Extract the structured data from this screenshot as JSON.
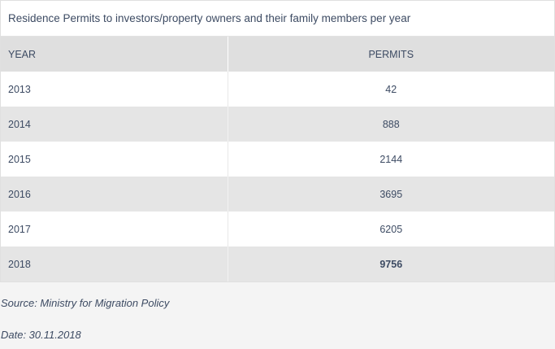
{
  "caption": "Residence Permits to investors/property owners and their family members per year",
  "chart_data": {
    "type": "table",
    "columns": [
      "YEAR",
      "PERMITS"
    ],
    "rows": [
      {
        "year": "2013",
        "permits": "42",
        "bold": false
      },
      {
        "year": "2014",
        "permits": "888",
        "bold": false
      },
      {
        "year": "2015",
        "permits": "2144",
        "bold": false
      },
      {
        "year": "2016",
        "permits": "3695",
        "bold": false
      },
      {
        "year": "2017",
        "permits": "6205",
        "bold": false
      },
      {
        "year": "2018",
        "permits": "9756",
        "bold": true
      }
    ]
  },
  "footer": {
    "source": "Source: Ministry for Migration Policy",
    "date": "Date: 30.11.2018"
  },
  "colors": {
    "text": "#3d4b63",
    "header_bg": "#dfdfdf",
    "stripe_bg": "#e5e5e5",
    "page_bg": "#f4f4f4"
  }
}
